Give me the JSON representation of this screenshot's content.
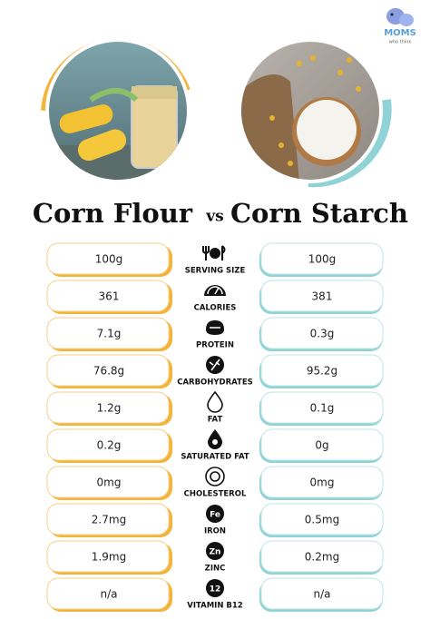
{
  "logo": {
    "brand": "MOMS",
    "tagline": "who think"
  },
  "title": {
    "left": "Corn Flour",
    "vs": "vs",
    "right": "Corn Starch"
  },
  "rows": [
    {
      "label": "SERVING SIZE",
      "left": "100g",
      "right": "100g"
    },
    {
      "label": "CALORIES",
      "left": "361",
      "right": "381"
    },
    {
      "label": "PROTEIN",
      "left": "7.1g",
      "right": "0.3g"
    },
    {
      "label": "CARBOHYDRATES",
      "left": "76.8g",
      "right": "95.2g"
    },
    {
      "label": "FAT",
      "left": "1.2g",
      "right": "0.1g"
    },
    {
      "label": "SATURATED FAT",
      "left": "0.2g",
      "right": "0g"
    },
    {
      "label": "CHOLESTEROL",
      "left": "0mg",
      "right": "0mg"
    },
    {
      "label": "IRON",
      "left": "2.7mg",
      "right": "0.5mg",
      "icon_text": "Fe"
    },
    {
      "label": "ZINC",
      "left": "1.9mg",
      "right": "0.2mg",
      "icon_text": "Zn"
    },
    {
      "label": "VITAMIN B12",
      "left": "n/a",
      "right": "n/a",
      "icon_text": "12"
    }
  ]
}
